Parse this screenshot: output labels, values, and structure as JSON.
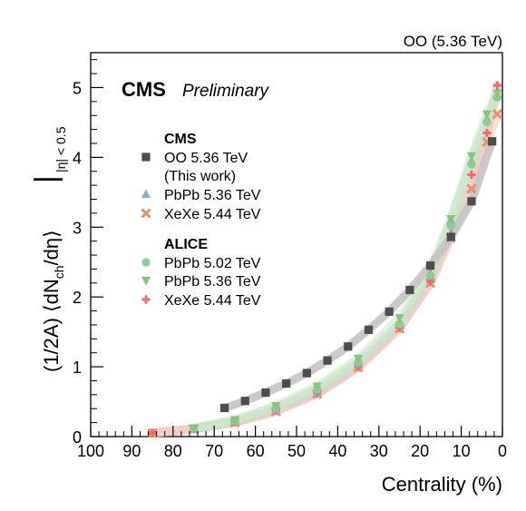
{
  "chart_data": {
    "type": "scatter",
    "header_right": "OO (5.36 TeV)",
    "experiment": "CMS",
    "status": "Preliminary",
    "xlabel": "Centrality (%)",
    "ylabel_main": "(1/2A) ⟨dN",
    "ylabel_sub": "ch",
    "ylabel_mid": "/dη⟩",
    "ylabel_cond": "|η| < 0.5",
    "xlim": [
      100,
      0
    ],
    "ylim": [
      0,
      5.5
    ],
    "x_ticks": [
      100,
      90,
      80,
      70,
      60,
      50,
      40,
      30,
      20,
      10,
      0
    ],
    "y_ticks": [
      0,
      1,
      2,
      3,
      4,
      5
    ],
    "legend_groups": [
      {
        "title": "CMS",
        "entries": [
          "OO 5.36 TeV",
          "(This work)",
          "PbPb 5.36 TeV",
          "XeXe 5.44 TeV"
        ]
      },
      {
        "title": "ALICE",
        "entries": [
          "PbPb 5.02 TeV",
          "PbPb 5.36 TeV",
          "XeXe 5.44 TeV"
        ]
      }
    ],
    "series": [
      {
        "name": "OO 5.36 TeV",
        "group": "CMS",
        "marker": "square",
        "color": "#4d4d4d",
        "band_color": "#c4c4c4",
        "x": [
          67.5,
          62.5,
          57.5,
          52.5,
          47.5,
          42.5,
          37.5,
          32.5,
          27.5,
          22.5,
          17.5,
          12.5,
          7.5,
          2.5
        ],
        "y": [
          0.41,
          0.51,
          0.63,
          0.76,
          0.91,
          1.09,
          1.29,
          1.53,
          1.79,
          2.1,
          2.45,
          2.86,
          3.37,
          4.23
        ]
      },
      {
        "name": "PbPb 5.36 TeV",
        "group": "CMS",
        "marker": "triangle-up",
        "color": "#7fb1d4",
        "band_color": "#bcd9d7",
        "x": [
          75,
          65,
          55,
          45,
          35,
          25,
          17.5,
          12.5,
          7.5,
          3.75,
          1.25
        ],
        "y": [
          0.11,
          0.22,
          0.4,
          0.66,
          1.05,
          1.62,
          2.3,
          3.1,
          3.95,
          4.55,
          4.9
        ]
      },
      {
        "name": "XeXe 5.44 TeV",
        "group": "CMS",
        "marker": "x",
        "color": "#e5936a",
        "band_color": "#f2c7ad",
        "x": [
          85,
          75,
          65,
          55,
          45,
          35,
          25,
          17.5,
          12.5,
          7.5,
          3.75,
          1.25
        ],
        "y": [
          0.05,
          0.11,
          0.2,
          0.36,
          0.61,
          0.99,
          1.55,
          2.2,
          2.85,
          3.55,
          4.22,
          4.62
        ]
      },
      {
        "name": "PbPb 5.02 TeV",
        "group": "ALICE",
        "marker": "circle",
        "color": "#8fcc8f",
        "band_color": "#c8e6c8",
        "x": [
          75,
          65,
          55,
          45,
          35,
          25,
          17.5,
          12.5,
          7.5,
          3.75,
          1.25
        ],
        "y": [
          0.11,
          0.23,
          0.42,
          0.69,
          1.07,
          1.61,
          2.31,
          3.02,
          3.9,
          4.5,
          4.86
        ]
      },
      {
        "name": "PbPb 5.36 TeV",
        "group": "ALICE",
        "marker": "triangle-down",
        "color": "#86c57a",
        "band_color": "#cfe8c8",
        "x": [
          75,
          65,
          55,
          45,
          35,
          25,
          17.5,
          12.5,
          7.5,
          3.75,
          1.25
        ],
        "y": [
          0.12,
          0.24,
          0.44,
          0.72,
          1.12,
          1.7,
          2.4,
          3.12,
          4.02,
          4.62,
          4.92
        ]
      },
      {
        "name": "XeXe 5.44 TeV",
        "group": "ALICE",
        "marker": "plus",
        "color": "#ee6b74",
        "band_color": "#f6b9bc",
        "x": [
          85,
          75,
          65,
          55,
          45,
          35,
          25,
          17.5,
          12.5,
          7.5,
          3.75,
          1.25
        ],
        "y": [
          0.05,
          0.11,
          0.21,
          0.38,
          0.62,
          1.0,
          1.56,
          2.22,
          2.9,
          3.75,
          4.35,
          5.03
        ]
      }
    ]
  }
}
